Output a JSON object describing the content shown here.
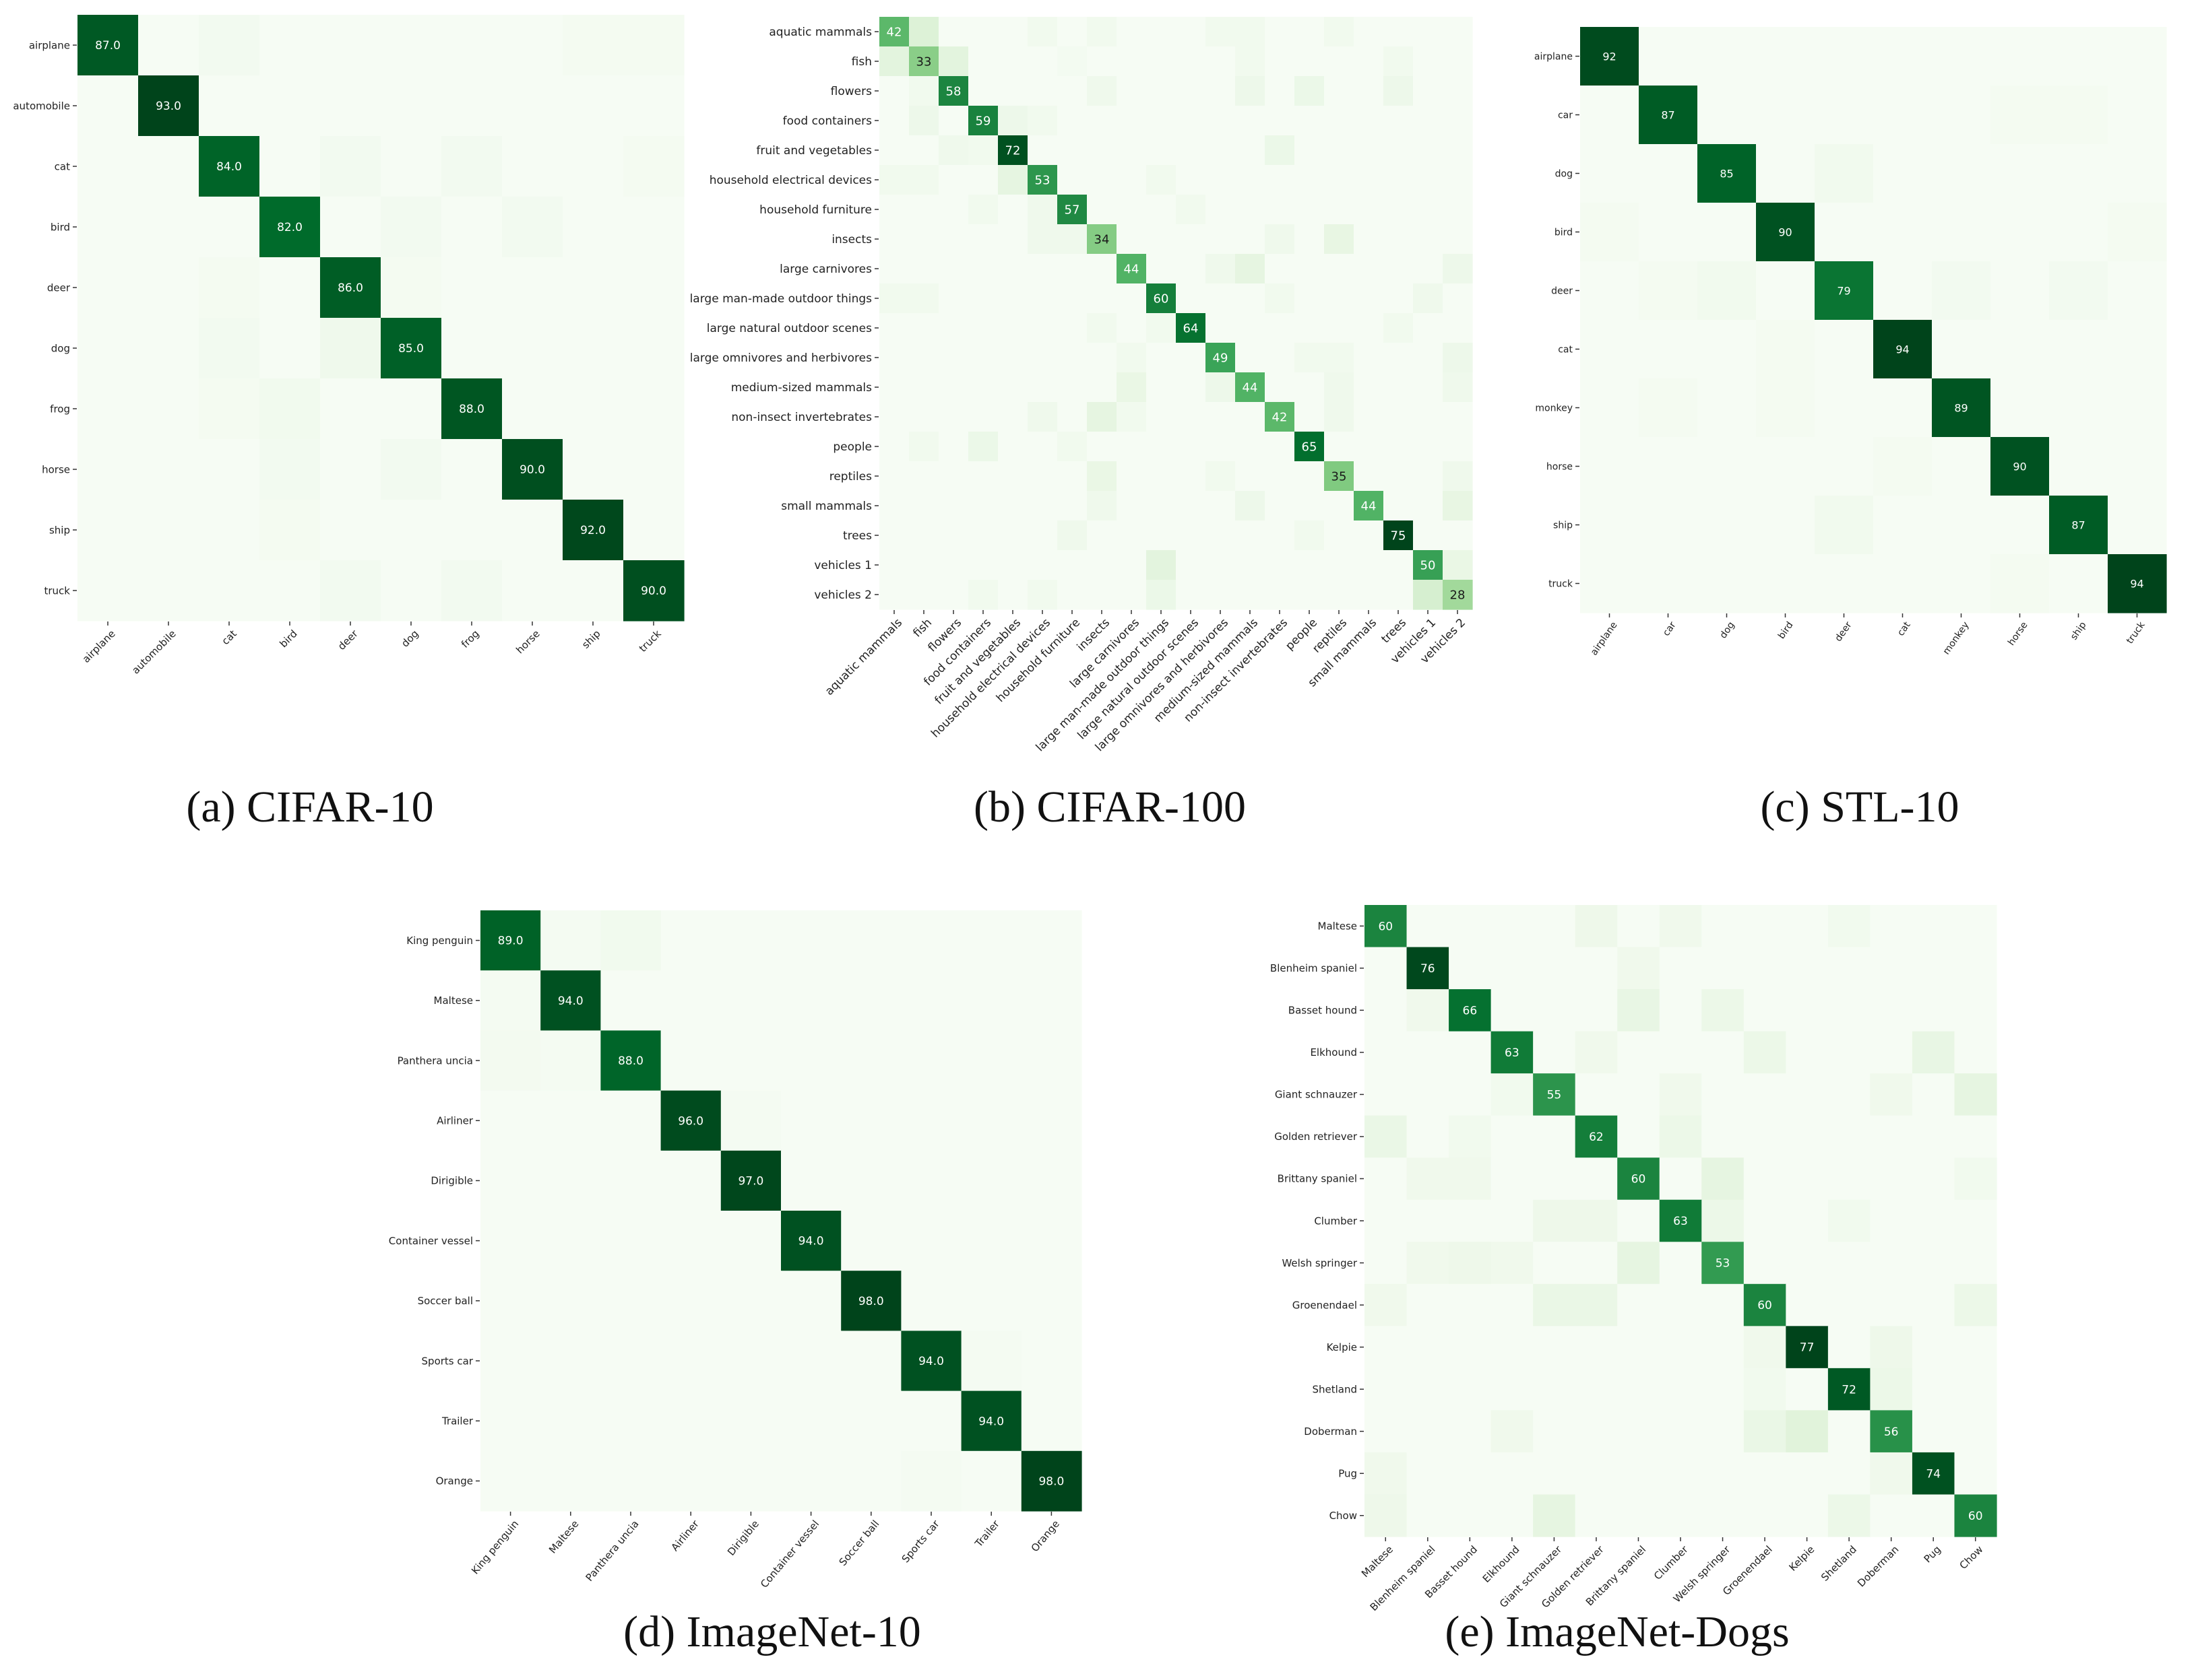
{
  "figure": {
    "captions": [
      "(a) CIFAR-10",
      "(b) CIFAR-100",
      "(c) STL-10",
      "(d) ImageNet-10",
      "(e) ImageNet-Dogs"
    ]
  },
  "colors": {
    "low": "#f7fcf5",
    "high": "#00441b",
    "text_dark_cell": "#ffffff",
    "text_light_cell": "#1a1a1a"
  },
  "chart_data": [
    {
      "type": "heatmap",
      "title": "",
      "caption": "(a) CIFAR-10",
      "labels": [
        "airplane",
        "automobile",
        "cat",
        "bird",
        "deer",
        "dog",
        "frog",
        "horse",
        "ship",
        "truck"
      ],
      "diagonal": [
        87.0,
        93.0,
        84.0,
        82.0,
        86.0,
        85.0,
        88.0,
        90.0,
        92.0,
        90.0
      ],
      "diagonal_text": [
        "87.0",
        "93.0",
        "84.0",
        "82.0",
        "86.0",
        "85.0",
        "88.0",
        "90.0",
        "92.0",
        "90.0"
      ],
      "vmax": 93,
      "off_diagonal": [
        {
          "row": 0,
          "col": 2,
          "value": 3
        },
        {
          "row": 0,
          "col": 8,
          "value": 2
        },
        {
          "row": 0,
          "col": 9,
          "value": 2
        },
        {
          "row": 2,
          "col": 4,
          "value": 3
        },
        {
          "row": 2,
          "col": 6,
          "value": 3
        },
        {
          "row": 2,
          "col": 9,
          "value": 2
        },
        {
          "row": 3,
          "col": 5,
          "value": 3
        },
        {
          "row": 3,
          "col": 7,
          "value": 3
        },
        {
          "row": 4,
          "col": 2,
          "value": 2
        },
        {
          "row": 4,
          "col": 5,
          "value": 2
        },
        {
          "row": 5,
          "col": 2,
          "value": 3
        },
        {
          "row": 5,
          "col": 4,
          "value": 5
        },
        {
          "row": 6,
          "col": 3,
          "value": 4
        },
        {
          "row": 6,
          "col": 2,
          "value": 2
        },
        {
          "row": 7,
          "col": 3,
          "value": 3
        },
        {
          "row": 7,
          "col": 5,
          "value": 3
        },
        {
          "row": 8,
          "col": 3,
          "value": 2
        },
        {
          "row": 9,
          "col": 4,
          "value": 3
        },
        {
          "row": 9,
          "col": 6,
          "value": 3
        }
      ]
    },
    {
      "type": "heatmap",
      "title": "",
      "caption": "(b) CIFAR-100",
      "labels": [
        "aquatic mammals",
        "fish",
        "flowers",
        "food containers",
        "fruit and vegetables",
        "household electrical devices",
        "household furniture",
        "insects",
        "large carnivores",
        "large man-made outdoor things",
        "large natural outdoor scenes",
        "large omnivores and herbivores",
        "medium-sized mammals",
        "non-insect invertebrates",
        "people",
        "reptiles",
        "small mammals",
        "trees",
        "vehicles 1",
        "vehicles 2"
      ],
      "diagonal": [
        42,
        33,
        58,
        59,
        72,
        53,
        57,
        34,
        44,
        60,
        64,
        49,
        44,
        42,
        65,
        35,
        44,
        75,
        50,
        28
      ],
      "diagonal_text": [
        "42",
        "33",
        "58",
        "59",
        "72",
        "53",
        "57",
        "34",
        "44",
        "60",
        "64",
        "49",
        "44",
        "42",
        "65",
        "35",
        "44",
        "75",
        "50",
        "28"
      ],
      "vmax": 75,
      "off_diagonal": [
        {
          "row": 0,
          "col": 1,
          "value": 12
        },
        {
          "row": 0,
          "col": 5,
          "value": 3
        },
        {
          "row": 0,
          "col": 7,
          "value": 3
        },
        {
          "row": 0,
          "col": 11,
          "value": 3
        },
        {
          "row": 0,
          "col": 12,
          "value": 3
        },
        {
          "row": 0,
          "col": 15,
          "value": 3
        },
        {
          "row": 1,
          "col": 0,
          "value": 10
        },
        {
          "row": 1,
          "col": 2,
          "value": 10
        },
        {
          "row": 1,
          "col": 6,
          "value": 2
        },
        {
          "row": 1,
          "col": 12,
          "value": 3
        },
        {
          "row": 1,
          "col": 17,
          "value": 3
        },
        {
          "row": 2,
          "col": 1,
          "value": 3
        },
        {
          "row": 2,
          "col": 7,
          "value": 4
        },
        {
          "row": 2,
          "col": 12,
          "value": 5
        },
        {
          "row": 2,
          "col": 14,
          "value": 6
        },
        {
          "row": 2,
          "col": 17,
          "value": 5
        },
        {
          "row": 3,
          "col": 1,
          "value": 5
        },
        {
          "row": 3,
          "col": 4,
          "value": 5
        },
        {
          "row": 3,
          "col": 5,
          "value": 3
        },
        {
          "row": 4,
          "col": 2,
          "value": 4
        },
        {
          "row": 4,
          "col": 3,
          "value": 3
        },
        {
          "row": 4,
          "col": 13,
          "value": 6
        },
        {
          "row": 5,
          "col": 0,
          "value": 3
        },
        {
          "row": 5,
          "col": 1,
          "value": 3
        },
        {
          "row": 5,
          "col": 4,
          "value": 9
        },
        {
          "row": 5,
          "col": 9,
          "value": 3
        },
        {
          "row": 6,
          "col": 3,
          "value": 3
        },
        {
          "row": 6,
          "col": 5,
          "value": 4
        },
        {
          "row": 6,
          "col": 10,
          "value": 3
        },
        {
          "row": 7,
          "col": 5,
          "value": 4
        },
        {
          "row": 7,
          "col": 6,
          "value": 4
        },
        {
          "row": 7,
          "col": 13,
          "value": 4
        },
        {
          "row": 7,
          "col": 15,
          "value": 8
        },
        {
          "row": 8,
          "col": 11,
          "value": 4
        },
        {
          "row": 8,
          "col": 12,
          "value": 9
        },
        {
          "row": 8,
          "col": 19,
          "value": 5
        },
        {
          "row": 9,
          "col": 0,
          "value": 3
        },
        {
          "row": 9,
          "col": 1,
          "value": 3
        },
        {
          "row": 9,
          "col": 13,
          "value": 3
        },
        {
          "row": 9,
          "col": 18,
          "value": 4
        },
        {
          "row": 10,
          "col": 7,
          "value": 3
        },
        {
          "row": 10,
          "col": 9,
          "value": 3
        },
        {
          "row": 10,
          "col": 17,
          "value": 3
        },
        {
          "row": 11,
          "col": 8,
          "value": 3
        },
        {
          "row": 11,
          "col": 14,
          "value": 3
        },
        {
          "row": 11,
          "col": 15,
          "value": 3
        },
        {
          "row": 11,
          "col": 19,
          "value": 5
        },
        {
          "row": 12,
          "col": 8,
          "value": 7
        },
        {
          "row": 12,
          "col": 11,
          "value": 5
        },
        {
          "row": 12,
          "col": 15,
          "value": 4
        },
        {
          "row": 12,
          "col": 19,
          "value": 4
        },
        {
          "row": 13,
          "col": 5,
          "value": 4
        },
        {
          "row": 13,
          "col": 7,
          "value": 9
        },
        {
          "row": 13,
          "col": 8,
          "value": 3
        },
        {
          "row": 13,
          "col": 15,
          "value": 4
        },
        {
          "row": 14,
          "col": 1,
          "value": 3
        },
        {
          "row": 14,
          "col": 3,
          "value": 6
        },
        {
          "row": 14,
          "col": 6,
          "value": 3
        },
        {
          "row": 15,
          "col": 7,
          "value": 7
        },
        {
          "row": 15,
          "col": 11,
          "value": 3
        },
        {
          "row": 15,
          "col": 19,
          "value": 4
        },
        {
          "row": 16,
          "col": 7,
          "value": 4
        },
        {
          "row": 16,
          "col": 12,
          "value": 5
        },
        {
          "row": 16,
          "col": 19,
          "value": 8
        },
        {
          "row": 17,
          "col": 6,
          "value": 4
        },
        {
          "row": 17,
          "col": 14,
          "value": 3
        },
        {
          "row": 18,
          "col": 9,
          "value": 10
        },
        {
          "row": 18,
          "col": 19,
          "value": 7
        },
        {
          "row": 19,
          "col": 9,
          "value": 6
        },
        {
          "row": 19,
          "col": 18,
          "value": 14
        },
        {
          "row": 19,
          "col": 5,
          "value": 3
        },
        {
          "row": 19,
          "col": 3,
          "value": 3
        }
      ]
    },
    {
      "type": "heatmap",
      "title": "",
      "caption": "(c) STL-10",
      "labels": [
        "airplane",
        "car",
        "dog",
        "bird",
        "deer",
        "cat",
        "monkey",
        "horse",
        "ship",
        "truck"
      ],
      "diagonal": [
        92,
        87,
        85,
        90,
        79,
        94,
        89,
        90,
        87,
        94
      ],
      "diagonal_text": [
        "92",
        "87",
        "85",
        "90",
        "79",
        "94",
        "89",
        "90",
        "87",
        "94"
      ],
      "vmax": 94,
      "off_diagonal": [
        {
          "row": 1,
          "col": 7,
          "value": 2
        },
        {
          "row": 1,
          "col": 8,
          "value": 2
        },
        {
          "row": 2,
          "col": 4,
          "value": 4
        },
        {
          "row": 3,
          "col": 0,
          "value": 2
        },
        {
          "row": 3,
          "col": 9,
          "value": 2
        },
        {
          "row": 4,
          "col": 1,
          "value": 2
        },
        {
          "row": 4,
          "col": 2,
          "value": 4
        },
        {
          "row": 4,
          "col": 6,
          "value": 3
        },
        {
          "row": 4,
          "col": 8,
          "value": 3
        },
        {
          "row": 5,
          "col": 3,
          "value": 2
        },
        {
          "row": 6,
          "col": 1,
          "value": 2
        },
        {
          "row": 6,
          "col": 3,
          "value": 2
        },
        {
          "row": 7,
          "col": 5,
          "value": 2
        },
        {
          "row": 8,
          "col": 4,
          "value": 4
        },
        {
          "row": 9,
          "col": 7,
          "value": 2
        }
      ]
    },
    {
      "type": "heatmap",
      "title": "",
      "caption": "(d) ImageNet-10",
      "labels": [
        "King penguin",
        "Maltese",
        "Panthera uncia",
        "Airliner",
        "Dirigible",
        "Container vessel",
        "Soccer ball",
        "Sports car",
        "Trailer",
        "Orange"
      ],
      "diagonal": [
        89.0,
        94.0,
        88.0,
        96.0,
        97.0,
        94.0,
        98.0,
        94.0,
        94.0,
        98.0
      ],
      "diagonal_text": [
        "89.0",
        "94.0",
        "88.0",
        "96.0",
        "97.0",
        "94.0",
        "98.0",
        "94.0",
        "94.0",
        "98.0"
      ],
      "vmax": 98,
      "off_diagonal": [
        {
          "row": 0,
          "col": 2,
          "value": 4
        },
        {
          "row": 0,
          "col": 1,
          "value": 2
        },
        {
          "row": 1,
          "col": 0,
          "value": 2
        },
        {
          "row": 2,
          "col": 0,
          "value": 3
        },
        {
          "row": 2,
          "col": 1,
          "value": 2
        },
        {
          "row": 3,
          "col": 4,
          "value": 2
        },
        {
          "row": 7,
          "col": 8,
          "value": 2
        },
        {
          "row": 9,
          "col": 7,
          "value": 2
        }
      ]
    },
    {
      "type": "heatmap",
      "title": "",
      "caption": "(e) ImageNet-Dogs",
      "labels": [
        "Maltese",
        "Blenheim spaniel",
        "Basset hound",
        "Elkhound",
        "Giant schnauzer",
        "Golden retriever",
        "Brittany spaniel",
        "Clumber",
        "Welsh springer",
        "Groenendael",
        "Kelpie",
        "Shetland",
        "Doberman",
        "Pug",
        "Chow"
      ],
      "diagonal": [
        60,
        76,
        66,
        63,
        55,
        62,
        60,
        63,
        53,
        60,
        77,
        72,
        56,
        74,
        60
      ],
      "diagonal_text": [
        "60",
        "76",
        "66",
        "63",
        "55",
        "62",
        "60",
        "63",
        "53",
        "60",
        "77",
        "72",
        "56",
        "74",
        "60"
      ],
      "vmax": 77,
      "off_diagonal": [
        {
          "row": 0,
          "col": 5,
          "value": 5
        },
        {
          "row": 0,
          "col": 7,
          "value": 4
        },
        {
          "row": 0,
          "col": 11,
          "value": 3
        },
        {
          "row": 1,
          "col": 6,
          "value": 4
        },
        {
          "row": 2,
          "col": 1,
          "value": 4
        },
        {
          "row": 2,
          "col": 6,
          "value": 8
        },
        {
          "row": 2,
          "col": 8,
          "value": 6
        },
        {
          "row": 3,
          "col": 5,
          "value": 4
        },
        {
          "row": 3,
          "col": 9,
          "value": 6
        },
        {
          "row": 3,
          "col": 13,
          "value": 8
        },
        {
          "row": 4,
          "col": 3,
          "value": 3
        },
        {
          "row": 4,
          "col": 7,
          "value": 4
        },
        {
          "row": 4,
          "col": 12,
          "value": 4
        },
        {
          "row": 4,
          "col": 14,
          "value": 9
        },
        {
          "row": 5,
          "col": 0,
          "value": 7
        },
        {
          "row": 5,
          "col": 2,
          "value": 3
        },
        {
          "row": 5,
          "col": 7,
          "value": 6
        },
        {
          "row": 6,
          "col": 1,
          "value": 4
        },
        {
          "row": 6,
          "col": 2,
          "value": 4
        },
        {
          "row": 6,
          "col": 8,
          "value": 9
        },
        {
          "row": 6,
          "col": 14,
          "value": 3
        },
        {
          "row": 7,
          "col": 4,
          "value": 5
        },
        {
          "row": 7,
          "col": 5,
          "value": 5
        },
        {
          "row": 7,
          "col": 8,
          "value": 6
        },
        {
          "row": 7,
          "col": 11,
          "value": 3
        },
        {
          "row": 8,
          "col": 1,
          "value": 4
        },
        {
          "row": 8,
          "col": 2,
          "value": 5
        },
        {
          "row": 8,
          "col": 3,
          "value": 4
        },
        {
          "row": 8,
          "col": 6,
          "value": 9
        },
        {
          "row": 9,
          "col": 0,
          "value": 4
        },
        {
          "row": 9,
          "col": 4,
          "value": 7
        },
        {
          "row": 9,
          "col": 5,
          "value": 7
        },
        {
          "row": 9,
          "col": 14,
          "value": 6
        },
        {
          "row": 10,
          "col": 9,
          "value": 4
        },
        {
          "row": 10,
          "col": 12,
          "value": 5
        },
        {
          "row": 11,
          "col": 9,
          "value": 3
        },
        {
          "row": 11,
          "col": 12,
          "value": 6
        },
        {
          "row": 12,
          "col": 3,
          "value": 4
        },
        {
          "row": 12,
          "col": 9,
          "value": 7
        },
        {
          "row": 12,
          "col": 10,
          "value": 11
        },
        {
          "row": 13,
          "col": 0,
          "value": 4
        },
        {
          "row": 13,
          "col": 12,
          "value": 4
        },
        {
          "row": 14,
          "col": 0,
          "value": 5
        },
        {
          "row": 14,
          "col": 4,
          "value": 9
        },
        {
          "row": 14,
          "col": 11,
          "value": 6
        }
      ]
    }
  ]
}
